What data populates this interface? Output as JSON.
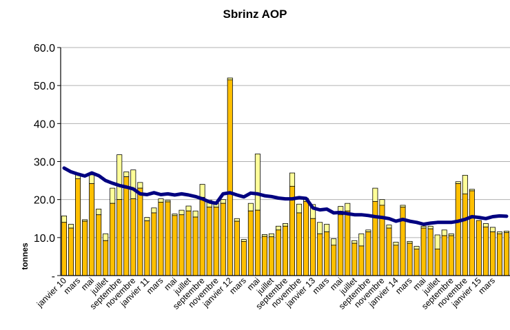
{
  "chart_data": {
    "type": "bar",
    "title": "Sbrinz AOP",
    "ylabel": "tonnes",
    "ylim": [
      0,
      60
    ],
    "ytick_labels": [
      "-",
      "10.0",
      "20.0",
      "30.0",
      "40.0",
      "50.0",
      "60.0"
    ],
    "grid": "horizontal",
    "colors": {
      "bar_fill": "#FFC000",
      "bar_top": "#FFFF99",
      "bar_stroke": "#000000",
      "line": "#000080",
      "grid": "#B0B0B0"
    },
    "x_labels": [
      "janvier 10",
      "mars",
      "mai",
      "juillet",
      "septembre",
      "novembre",
      "janvier 11",
      "mars",
      "mai",
      "juillet",
      "septembre",
      "novembre",
      "janvier 12",
      "mars",
      "mai",
      "juillet",
      "septembre",
      "novembre",
      "janvier 13",
      "mars",
      "mai",
      "juillet",
      "septembre",
      "novembre",
      "janvier 14",
      "mars",
      "mai",
      "juillet",
      "septembre",
      "novembre",
      "janvier 15",
      "mars"
    ],
    "series": [
      {
        "values": [
          14.0,
          12.5,
          25.5,
          14.3,
          24.2,
          16.0,
          9.2,
          19.0,
          20.0,
          26.0,
          20.2,
          23.0,
          14.4,
          16.5,
          19.3,
          19.4,
          15.8,
          16.0,
          17.0,
          15.4,
          20.6,
          18.0,
          18.0,
          19.0,
          51.5,
          14.3,
          9.0,
          17.0,
          17.2,
          10.3,
          10.2,
          12.0,
          13.0,
          23.5,
          16.5,
          19.5,
          15.0,
          11.0,
          11.5,
          8.0,
          16.0,
          17.0,
          8.5,
          7.8,
          11.5,
          19.5,
          18.5,
          12.5,
          8.0,
          18.0,
          8.5,
          7.0,
          12.5,
          12.3,
          7.0,
          10.5,
          10.5,
          24.2,
          21.5,
          22.3,
          14.5,
          12.8,
          11.5,
          11.0,
          11.3
        ]
      },
      {
        "values": [
          15.7,
          13.5,
          26.5,
          14.7,
          26.5,
          17.5,
          11.0,
          23.0,
          31.8,
          27.3,
          27.8,
          24.5,
          15.3,
          17.8,
          20.2,
          19.8,
          16.2,
          17.2,
          18.3,
          17.0,
          24.0,
          19.8,
          19.0,
          20.0,
          52.0,
          15.0,
          9.5,
          19.0,
          32.0,
          10.8,
          11.0,
          13.0,
          13.7,
          27.0,
          18.8,
          20.3,
          18.7,
          14.0,
          13.5,
          9.7,
          18.2,
          19.0,
          9.2,
          11.0,
          12.0,
          23.0,
          20.0,
          13.3,
          8.8,
          18.5,
          9.0,
          7.7,
          13.0,
          13.0,
          10.7,
          12.0,
          11.0,
          24.7,
          26.4,
          22.7,
          14.5,
          13.7,
          12.7,
          11.5,
          11.7
        ]
      },
      {
        "values": [
          28.3,
          27.3,
          26.7,
          26.2,
          27.0,
          26.3,
          25.0,
          24.3,
          23.7,
          23.3,
          22.8,
          21.5,
          21.3,
          21.8,
          21.3,
          21.5,
          21.2,
          21.5,
          21.2,
          20.8,
          20.2,
          19.4,
          19.0,
          21.5,
          21.8,
          21.2,
          20.7,
          21.7,
          21.5,
          21.0,
          20.8,
          20.4,
          20.2,
          20.2,
          20.5,
          20.3,
          17.8,
          17.3,
          17.5,
          16.5,
          16.6,
          16.3,
          16.0,
          16.0,
          15.8,
          15.5,
          15.3,
          15.0,
          14.3,
          14.8,
          14.3,
          14.0,
          13.5,
          13.8,
          14.0,
          14.0,
          14.0,
          14.3,
          14.8,
          15.5,
          15.3,
          15.0,
          15.5,
          15.7,
          15.6
        ]
      }
    ]
  }
}
